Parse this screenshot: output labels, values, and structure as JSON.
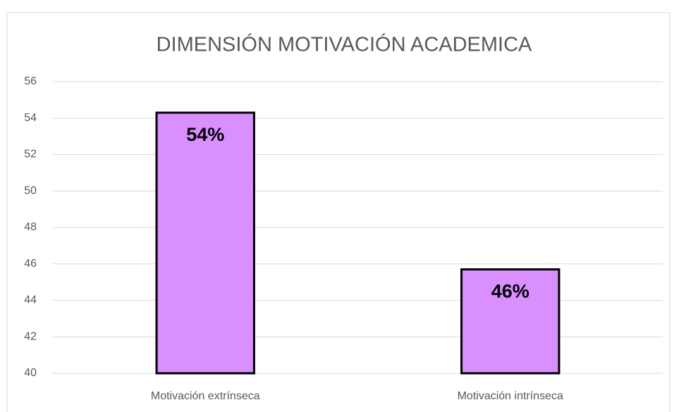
{
  "chart_data": {
    "type": "bar",
    "title": "DIMENSIÓN MOTIVACIÓN ACADEMICA",
    "categories": [
      "Motivación extrínseca",
      "Motivación intrínseca"
    ],
    "values": [
      54.3,
      45.7
    ],
    "value_labels": [
      "54%",
      "46%"
    ],
    "color": "#da8fff",
    "ylim": [
      40,
      56
    ],
    "yticks": [
      40,
      42,
      44,
      46,
      48,
      50,
      52,
      54,
      56
    ],
    "grid": true
  }
}
